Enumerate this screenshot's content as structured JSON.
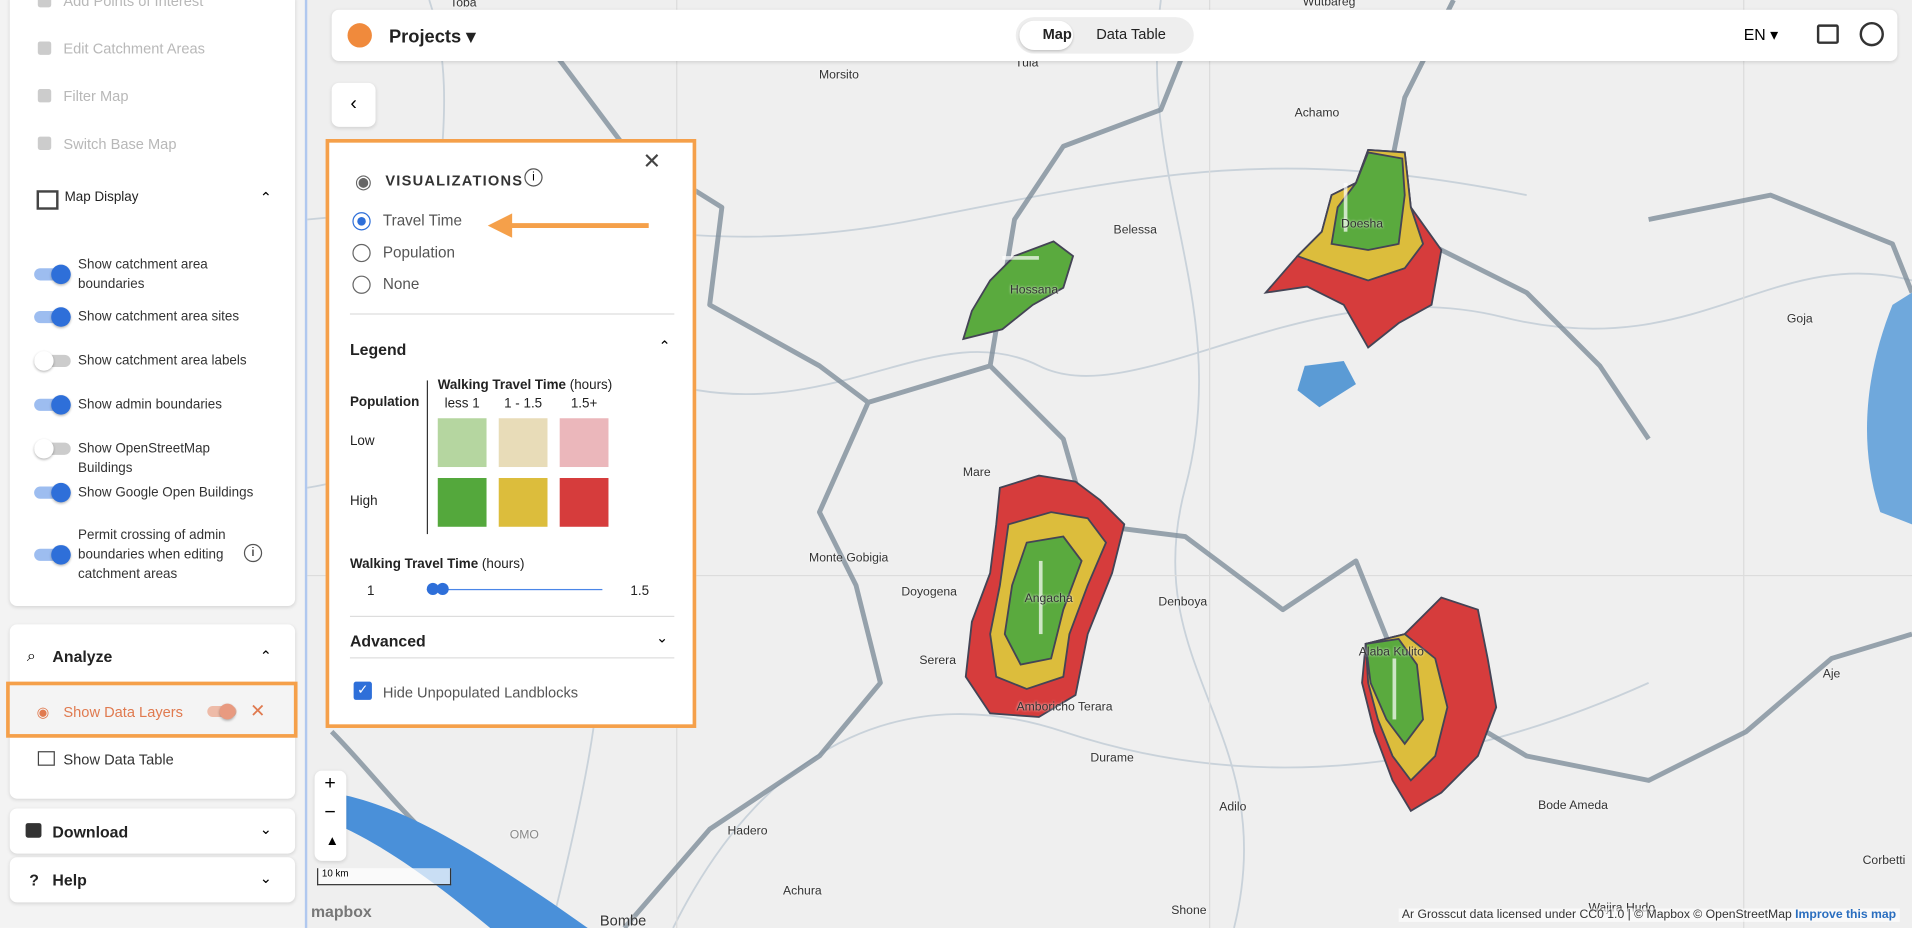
{
  "sidebar": {
    "tools": [
      "Add Points of Interest",
      "Edit Catchment Areas",
      "Filter Map",
      "Switch Base Map"
    ],
    "map_display": {
      "title": "Map Display",
      "toggles": [
        {
          "label": "Show catchment area boundaries",
          "on": true
        },
        {
          "label": "Show catchment area sites",
          "on": true
        },
        {
          "label": "Show catchment area labels",
          "on": false
        },
        {
          "label": "Show admin boundaries",
          "on": true
        },
        {
          "label": "Show OpenStreetMap Buildings",
          "on": false
        },
        {
          "label": "Show Google Open Buildings",
          "on": true
        },
        {
          "label": "Permit crossing of admin boundaries when editing catchment areas",
          "on": true
        }
      ]
    },
    "analyze": {
      "title": "Analyze",
      "items": [
        "Show Data Layers",
        "Show Data Table"
      ]
    },
    "download": "Download",
    "help": "Help"
  },
  "header": {
    "project": "Projects",
    "tabs": [
      "Map",
      "Data Table"
    ],
    "active_tab": "Map",
    "language": "EN"
  },
  "panel": {
    "title": "VISUALIZATIONS",
    "options": [
      "Travel Time",
      "Population",
      "None"
    ],
    "selected": "Travel Time",
    "legend": {
      "title": "Legend",
      "row_header": "Population",
      "col_header": "Walking Travel Time",
      "col_unit": "(hours)",
      "columns": [
        "less 1",
        "1 - 1.5",
        "1.5+"
      ],
      "rows": [
        "Low",
        "High"
      ],
      "colors": [
        [
          "#b5d6a0",
          "#e8dcb8",
          "#ebb7bb"
        ],
        [
          "#54a83c",
          "#dcbd3c",
          "#d63c3c"
        ]
      ]
    },
    "slider": {
      "label": "Walking Travel Time",
      "unit": "(hours)",
      "min_label": "1",
      "max_label": "1.5"
    },
    "advanced": "Advanced",
    "checkbox": "Hide Unpopulated Landblocks"
  },
  "map": {
    "places": [
      "Toba",
      "Wutbareg",
      "Morsito",
      "Tula",
      "Achamo",
      "Belessa",
      "Hossana",
      "Doesha",
      "Goja",
      "Mare",
      "Monte Gobigia",
      "Doyogena",
      "Angacha",
      "Denboya",
      "Serera",
      "Amboricho Terara",
      "Alaba Kulito",
      "Aje",
      "Durame",
      "Adilo",
      "Bode Ameda",
      "Hadero",
      "OMO",
      "Achura",
      "Bombe",
      "Shone",
      "Wajira Hudo",
      "Corbetti"
    ],
    "scale": "10 km",
    "brand": "mapbox",
    "attribution": "Ar Grosscut data licensed under CC0 1.0 | © Mapbox © OpenStreetMap",
    "improve": "Improve this map"
  }
}
